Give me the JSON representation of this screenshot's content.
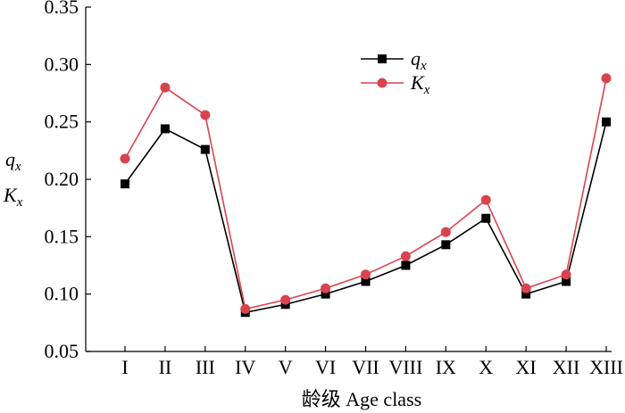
{
  "chart_data": {
    "type": "line",
    "xlabel": "龄级 Age class",
    "ylabel_top": "q",
    "ylabel_top_sub": "x",
    "ylabel_bottom": "K",
    "ylabel_bottom_sub": "x",
    "ylim": [
      0.05,
      0.35
    ],
    "yticks": [
      "0.05",
      "0.10",
      "0.15",
      "0.20",
      "0.25",
      "0.30",
      "0.35"
    ],
    "categories": [
      "I",
      "II",
      "III",
      "IV",
      "V",
      "VI",
      "VII",
      "VIII",
      "IX",
      "X",
      "XI",
      "XII",
      "XIII"
    ],
    "legend_position": "top-center",
    "series": [
      {
        "name": "q",
        "name_sub": "x",
        "color": "#000000",
        "marker": "square",
        "values": [
          0.196,
          0.244,
          0.226,
          0.084,
          0.091,
          0.1,
          0.111,
          0.125,
          0.143,
          0.166,
          0.1,
          0.111,
          0.25
        ]
      },
      {
        "name": "K",
        "name_sub": "x",
        "color": "#d9434f",
        "marker": "circle",
        "values": [
          0.218,
          0.28,
          0.256,
          0.087,
          0.095,
          0.105,
          0.117,
          0.133,
          0.154,
          0.182,
          0.105,
          0.117,
          0.288
        ]
      }
    ]
  }
}
